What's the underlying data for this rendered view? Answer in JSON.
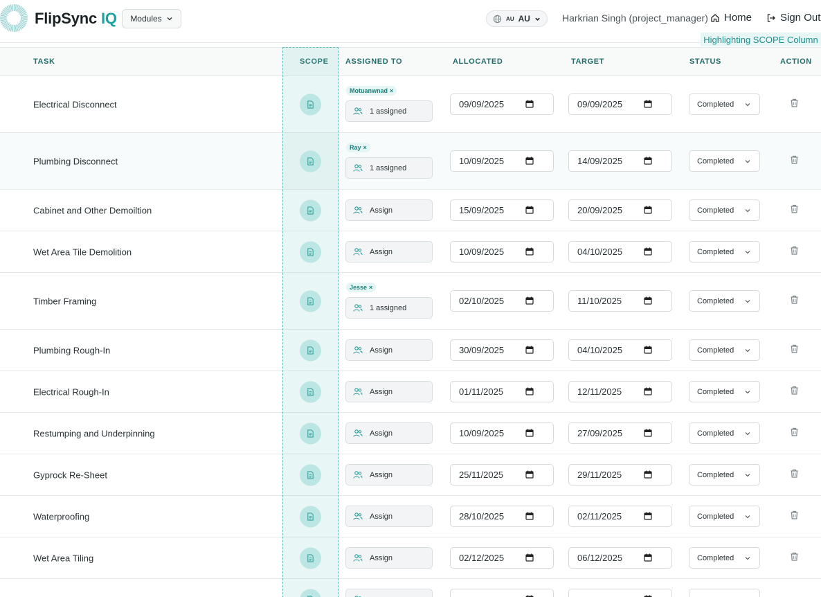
{
  "header": {
    "brand_main": "FlipSync",
    "brand_accent": "IQ",
    "modules_label": "Modules",
    "locale_flag": "AU",
    "locale_label": "AU",
    "user": "Harkrian Singh (project_manager)",
    "home_label": "Home",
    "signout_label": "Sign Out",
    "highlight_note": "Highlighting SCOPE Column"
  },
  "columns": {
    "task": "TASK",
    "scope": "SCOPE",
    "assigned_to": "ASSIGNED TO",
    "allocated": "ALLOCATED",
    "target": "TARGET",
    "status": "STATUS",
    "action": "ACTION"
  },
  "rows": [
    {
      "task": "Electrical Disconnect",
      "assignee": "Motuanwnad",
      "assign_label": "1 assigned",
      "allocated": "09/09/2025",
      "target": "09/09/2025",
      "status": "Completed"
    },
    {
      "task": "Plumbing Disconnect",
      "assignee": "Ray",
      "assign_label": "1 assigned",
      "allocated": "10/09/2025",
      "target": "14/09/2025",
      "status": "Completed"
    },
    {
      "task": "Cabinet and Other Demoiltion",
      "assignee": "",
      "assign_label": "Assign",
      "allocated": "15/09/2025",
      "target": "20/09/2025",
      "status": "Completed"
    },
    {
      "task": "Wet Area Tile Demolition",
      "assignee": "",
      "assign_label": "Assign",
      "allocated": "10/09/2025",
      "target": "04/10/2025",
      "status": "Completed"
    },
    {
      "task": "Timber Framing",
      "assignee": "Jesse",
      "assign_label": "1 assigned",
      "allocated": "02/10/2025",
      "target": "11/10/2025",
      "status": "Completed"
    },
    {
      "task": "Plumbing Rough-In",
      "assignee": "",
      "assign_label": "Assign",
      "allocated": "30/09/2025",
      "target": "04/10/2025",
      "status": "Completed"
    },
    {
      "task": "Electrical Rough-In",
      "assignee": "",
      "assign_label": "Assign",
      "allocated": "01/11/2025",
      "target": "12/11/2025",
      "status": "Completed"
    },
    {
      "task": "Restumping and Underpinning",
      "assignee": "",
      "assign_label": "Assign",
      "allocated": "10/09/2025",
      "target": "27/09/2025",
      "status": "Completed"
    },
    {
      "task": "Gyprock Re-Sheet",
      "assignee": "",
      "assign_label": "Assign",
      "allocated": "25/11/2025",
      "target": "29/11/2025",
      "status": "Completed"
    },
    {
      "task": "Waterproofing",
      "assignee": "",
      "assign_label": "Assign",
      "allocated": "28/10/2025",
      "target": "02/11/2025",
      "status": "Completed"
    },
    {
      "task": "Wet Area Tiling",
      "assignee": "",
      "assign_label": "Assign",
      "allocated": "02/12/2025",
      "target": "06/12/2025",
      "status": "Completed"
    }
  ],
  "colors": {
    "accent": "#1ba3a0",
    "header_text": "#226b6a"
  }
}
